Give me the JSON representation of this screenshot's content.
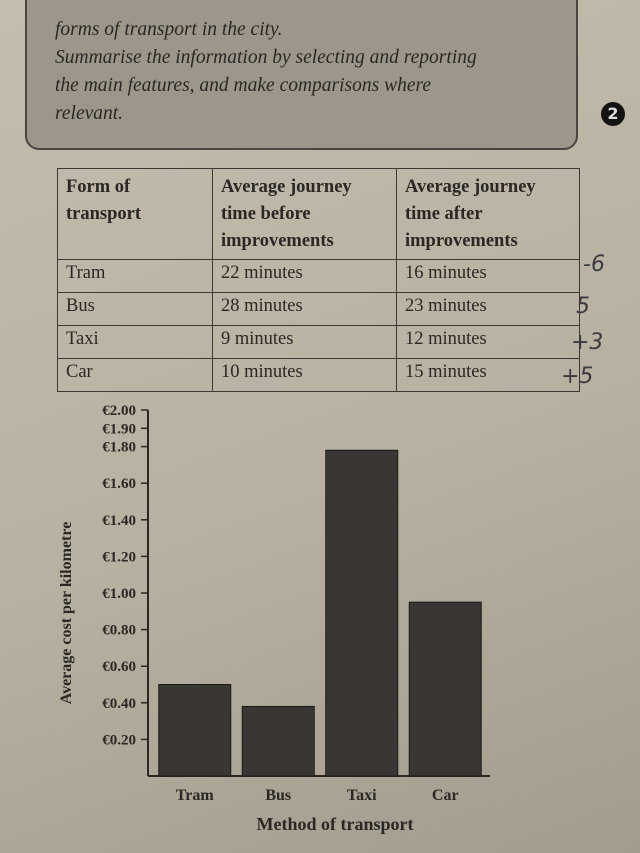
{
  "task": {
    "lines": [
      "forms of transport in the city.",
      "Summarise the information by selecting and reporting",
      "the main features, and make comparisons where",
      "relevant."
    ]
  },
  "badge": "2",
  "table": {
    "header": [
      "Form of transport",
      "Average journey time before improvements",
      "Average journey time after improvements"
    ],
    "rows": [
      [
        "Tram",
        "22 minutes",
        "16 minutes"
      ],
      [
        "Bus",
        "28 minutes",
        "23 minutes"
      ],
      [
        "Taxi",
        "9 minutes",
        "12 minutes"
      ],
      [
        "Car",
        "10 minutes",
        "15 minutes"
      ]
    ]
  },
  "annotations": [
    "-6",
    "5",
    "+3",
    "+5"
  ],
  "chart_data": {
    "type": "bar",
    "y_label": "Average cost per kilometre",
    "x_label": "Method of transport",
    "categories": [
      "Tram",
      "Bus",
      "Taxi",
      "Car"
    ],
    "values": [
      0.5,
      0.38,
      1.78,
      0.95
    ],
    "color": "#3a3633",
    "ylim": [
      0,
      2.0
    ],
    "yticks": [
      {
        "value": 0.2,
        "label": "€0.20"
      },
      {
        "value": 0.4,
        "label": "€0.40"
      },
      {
        "value": 0.6,
        "label": "€0.60"
      },
      {
        "value": 0.8,
        "label": "€0.80"
      },
      {
        "value": 1.0,
        "label": "€1.00"
      },
      {
        "value": 1.2,
        "label": "€1.20"
      },
      {
        "value": 1.4,
        "label": "€1.40"
      },
      {
        "value": 1.6,
        "label": "€1.60"
      },
      {
        "value": 1.8,
        "label": "€1.80"
      },
      {
        "value": 1.9,
        "label": "€1.90"
      },
      {
        "value": 2.0,
        "label": "€2.00"
      }
    ]
  }
}
